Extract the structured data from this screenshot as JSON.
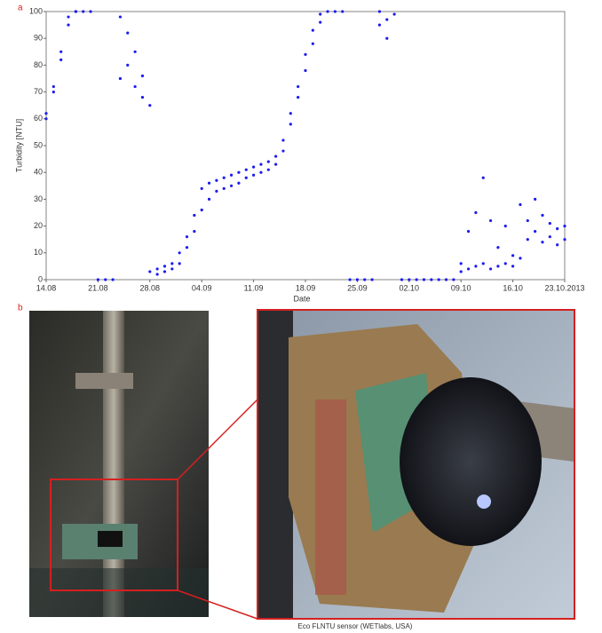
{
  "chart_data": {
    "type": "scatter",
    "xlabel": "Date",
    "ylabel": "Turbidity [NTU]",
    "panel_labels": [
      "a",
      "b"
    ],
    "caption": "Eco FLNTU sensor (WETlabs, USA)",
    "color": "#1c1cf0",
    "grid": false,
    "xlim": [
      "2013-08-14",
      "2013-10-23"
    ],
    "xticks": [
      {
        "value": "2013-08-14",
        "label": "14.08"
      },
      {
        "value": "2013-08-21",
        "label": "21.08"
      },
      {
        "value": "2013-08-28",
        "label": "28.08"
      },
      {
        "value": "2013-09-04",
        "label": "04.09"
      },
      {
        "value": "2013-09-11",
        "label": "11.09"
      },
      {
        "value": "2013-09-18",
        "label": "18.09"
      },
      {
        "value": "2013-09-25",
        "label": "25.09"
      },
      {
        "value": "2013-10-02",
        "label": "02.10"
      },
      {
        "value": "2013-10-09",
        "label": "09.10"
      },
      {
        "value": "2013-10-16",
        "label": "16.10"
      },
      {
        "value": "2013-10-23",
        "label": "23.10.2013"
      }
    ],
    "ylim": [
      0,
      100
    ],
    "yticks": [
      0,
      10,
      20,
      30,
      40,
      50,
      60,
      70,
      80,
      90,
      100
    ],
    "x": [
      "2013-08-14",
      "2013-08-14",
      "2013-08-15",
      "2013-08-15",
      "2013-08-16",
      "2013-08-16",
      "2013-08-17",
      "2013-08-17",
      "2013-08-18",
      "2013-08-18",
      "2013-08-19",
      "2013-08-20",
      "2013-08-21",
      "2013-08-22",
      "2013-08-23",
      "2013-08-24",
      "2013-08-24",
      "2013-08-25",
      "2013-08-25",
      "2013-08-26",
      "2013-08-26",
      "2013-08-27",
      "2013-08-27",
      "2013-08-28",
      "2013-08-28",
      "2013-08-29",
      "2013-08-29",
      "2013-08-30",
      "2013-08-30",
      "2013-08-31",
      "2013-08-31",
      "2013-09-01",
      "2013-09-01",
      "2013-09-02",
      "2013-09-02",
      "2013-09-03",
      "2013-09-03",
      "2013-09-04",
      "2013-09-04",
      "2013-09-05",
      "2013-09-05",
      "2013-09-06",
      "2013-09-06",
      "2013-09-07",
      "2013-09-07",
      "2013-09-08",
      "2013-09-08",
      "2013-09-09",
      "2013-09-09",
      "2013-09-10",
      "2013-09-10",
      "2013-09-11",
      "2013-09-11",
      "2013-09-12",
      "2013-09-12",
      "2013-09-13",
      "2013-09-13",
      "2013-09-14",
      "2013-09-14",
      "2013-09-15",
      "2013-09-15",
      "2013-09-16",
      "2013-09-16",
      "2013-09-17",
      "2013-09-17",
      "2013-09-18",
      "2013-09-18",
      "2013-09-19",
      "2013-09-19",
      "2013-09-20",
      "2013-09-20",
      "2013-09-21",
      "2013-09-22",
      "2013-09-23",
      "2013-09-24",
      "2013-09-25",
      "2013-09-26",
      "2013-09-27",
      "2013-09-28",
      "2013-09-28",
      "2013-09-29",
      "2013-09-29",
      "2013-09-30",
      "2013-10-01",
      "2013-10-02",
      "2013-10-03",
      "2013-10-04",
      "2013-10-05",
      "2013-10-06",
      "2013-10-07",
      "2013-10-08",
      "2013-10-09",
      "2013-10-09",
      "2013-10-10",
      "2013-10-10",
      "2013-10-11",
      "2013-10-11",
      "2013-10-12",
      "2013-10-12",
      "2013-10-13",
      "2013-10-13",
      "2013-10-14",
      "2013-10-14",
      "2013-10-15",
      "2013-10-15",
      "2013-10-16",
      "2013-10-16",
      "2013-10-17",
      "2013-10-17",
      "2013-10-18",
      "2013-10-18",
      "2013-10-19",
      "2013-10-19",
      "2013-10-20",
      "2013-10-20",
      "2013-10-21",
      "2013-10-21",
      "2013-10-22",
      "2013-10-22",
      "2013-10-23",
      "2013-10-23"
    ],
    "values": [
      60,
      62,
      70,
      72,
      82,
      85,
      95,
      98,
      100,
      100,
      100,
      100,
      0,
      0,
      0,
      75,
      98,
      80,
      92,
      72,
      85,
      68,
      76,
      3,
      65,
      2,
      4,
      3,
      5,
      4,
      6,
      6,
      10,
      12,
      16,
      18,
      24,
      26,
      34,
      30,
      36,
      33,
      37,
      34,
      38,
      35,
      39,
      36,
      40,
      38,
      41,
      39,
      42,
      40,
      43,
      41,
      44,
      43,
      46,
      48,
      52,
      58,
      62,
      68,
      72,
      78,
      84,
      88,
      93,
      96,
      99,
      100,
      100,
      100,
      0,
      0,
      0,
      0,
      95,
      100,
      90,
      97,
      99,
      0,
      0,
      0,
      0,
      0,
      0,
      0,
      0,
      3,
      6,
      4,
      18,
      5,
      25,
      6,
      38,
      4,
      22,
      5,
      12,
      6,
      20,
      5,
      9,
      8,
      28,
      15,
      22,
      18,
      30,
      14,
      24,
      16,
      21,
      13,
      19,
      15,
      20
    ]
  }
}
